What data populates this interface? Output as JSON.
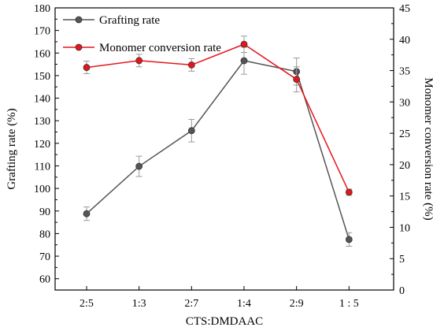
{
  "chart_data": {
    "type": "line",
    "categories": [
      "2:5",
      "1:3",
      "2:7",
      "1:4",
      "2:9",
      "1 : 5"
    ],
    "xlabel": "CTS:DMDAAC",
    "ylabel_left": "Grafting rate (%)",
    "ylabel_right": "Monomer conversion rate (%)",
    "ylim_left": [
      55,
      180
    ],
    "ylim_right": [
      0,
      45
    ],
    "yticks_left": [
      "60",
      "70",
      "80",
      "90",
      "100",
      "110",
      "120",
      "130",
      "140",
      "150",
      "160",
      "170",
      "180"
    ],
    "yticks_right": [
      "0",
      "5",
      "10",
      "15",
      "20",
      "25",
      "30",
      "35",
      "40",
      "45"
    ],
    "grid": false,
    "legend_position": "top-left",
    "series": [
      {
        "name": "Grafting rate",
        "axis": "left",
        "color": "#555555",
        "values": [
          88.8,
          109.8,
          125.6,
          156.6,
          151.8,
          77.4
        ],
        "errors": [
          3,
          4.5,
          5,
          6,
          6,
          3
        ]
      },
      {
        "name": "Monomer conversion rate",
        "axis": "right",
        "color": "#e8141b",
        "values": [
          35.5,
          36.6,
          35.9,
          39.2,
          33.6,
          15.6
        ],
        "errors": [
          1,
          1,
          1,
          1.3,
          2,
          0.5
        ]
      }
    ]
  }
}
